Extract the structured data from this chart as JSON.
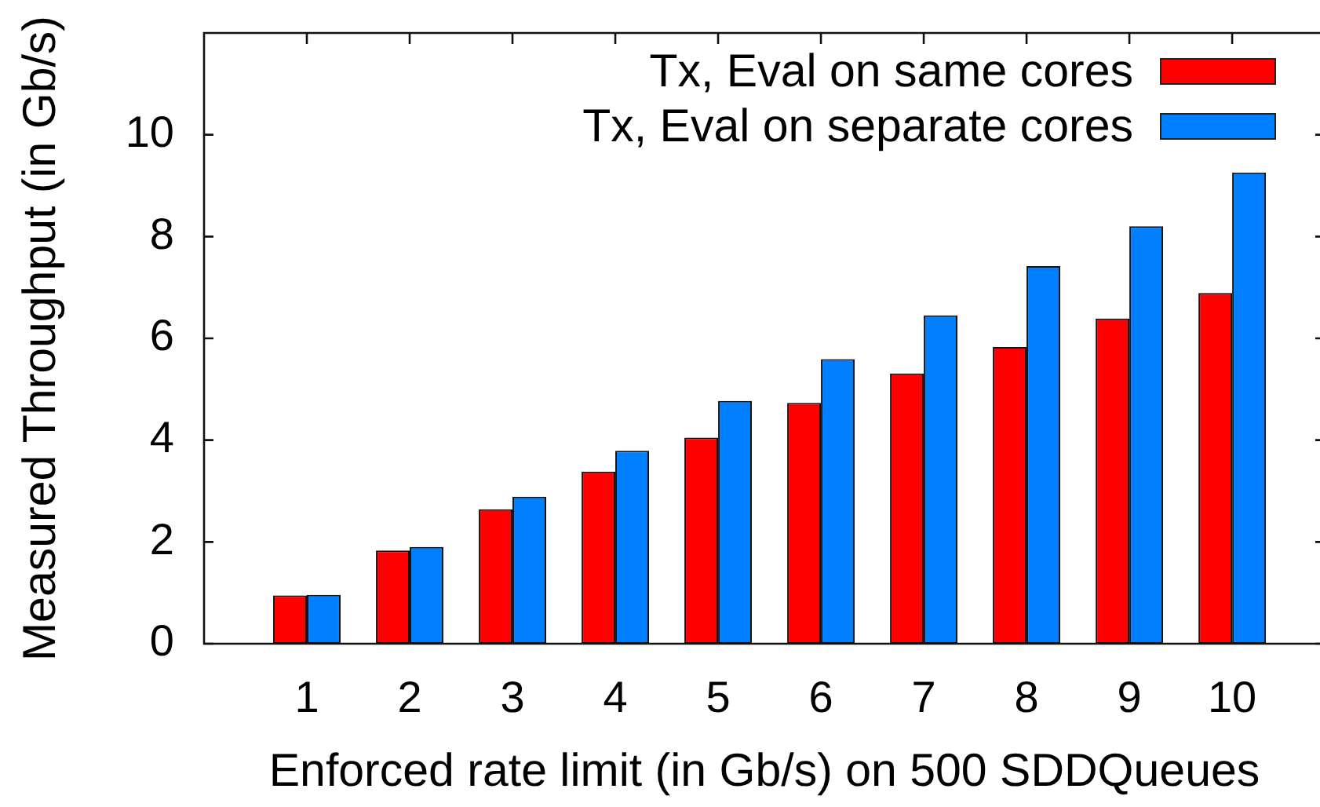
{
  "chart_data": {
    "type": "bar",
    "xlabel": "Enforced rate limit (in Gb/s) on 500 SDDQueues",
    "ylabel": "Measured Throughput (in Gb/s)",
    "categories": [
      "1",
      "2",
      "3",
      "4",
      "5",
      "6",
      "7",
      "8",
      "9",
      "10"
    ],
    "series": [
      {
        "name": "Tx, Eval on same cores",
        "color": "#ff0000",
        "values": [
          0.95,
          1.83,
          2.64,
          3.38,
          4.05,
          4.73,
          5.31,
          5.83,
          6.39,
          6.89
        ]
      },
      {
        "name": "Tx, Eval on separate cores",
        "color": "#0080ff",
        "values": [
          0.96,
          1.9,
          2.89,
          3.79,
          4.77,
          5.59,
          6.45,
          7.42,
          8.2,
          9.26
        ]
      }
    ],
    "ylim": [
      0,
      12
    ],
    "yticks": [
      0,
      2,
      4,
      6,
      8,
      10
    ],
    "grid": false,
    "legend": "top right"
  }
}
